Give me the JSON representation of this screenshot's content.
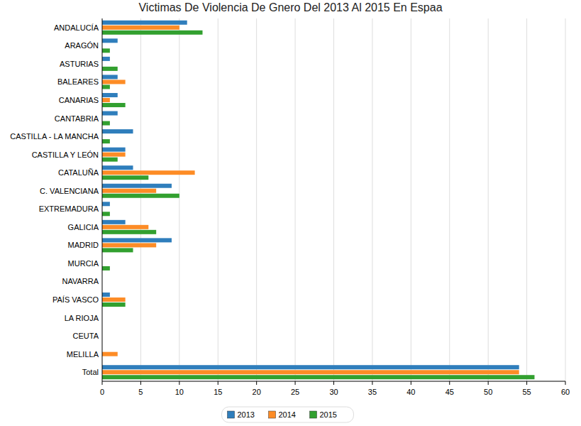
{
  "chart_data": {
    "type": "bar",
    "orientation": "horizontal",
    "title": "Victimas De Violencia De Gnero Del 2013 Al 2015 En Espaa",
    "categories": [
      "ANDALUCÍA",
      "ARAGÓN",
      "ASTURIAS",
      "BALEARES",
      "CANARIAS",
      "CANTABRIA",
      "CASTILLA - LA MANCHA",
      "CASTILLA Y LEÓN",
      "CATALUÑA",
      "C. VALENCIANA",
      "EXTREMADURA",
      "GALICIA",
      "MADRID",
      "MURCIA",
      "NAVARRA",
      "PAÍS VASCO",
      "LA RIOJA",
      "CEUTA",
      "MELILLA",
      "Total"
    ],
    "series": [
      {
        "name": "2013",
        "color": "#2f7ebc",
        "values": [
          11,
          2,
          1,
          2,
          2,
          2,
          4,
          3,
          4,
          9,
          1,
          3,
          9,
          0,
          0,
          1,
          0,
          0,
          0,
          54
        ]
      },
      {
        "name": "2014",
        "color": "#fd8c26",
        "values": [
          10,
          0,
          0,
          3,
          1,
          0,
          0,
          3,
          12,
          7,
          0,
          6,
          7,
          0,
          0,
          3,
          0,
          0,
          2,
          54
        ]
      },
      {
        "name": "2015",
        "color": "#32a02f",
        "values": [
          13,
          1,
          2,
          1,
          3,
          1,
          1,
          2,
          6,
          10,
          1,
          7,
          4,
          1,
          0,
          3,
          0,
          0,
          0,
          56
        ]
      }
    ],
    "xlim": [
      0,
      60
    ],
    "xticks": [
      0,
      5,
      10,
      15,
      20,
      25,
      30,
      35,
      40,
      45,
      50,
      55,
      60
    ],
    "grid": true,
    "legend": "bottom"
  }
}
